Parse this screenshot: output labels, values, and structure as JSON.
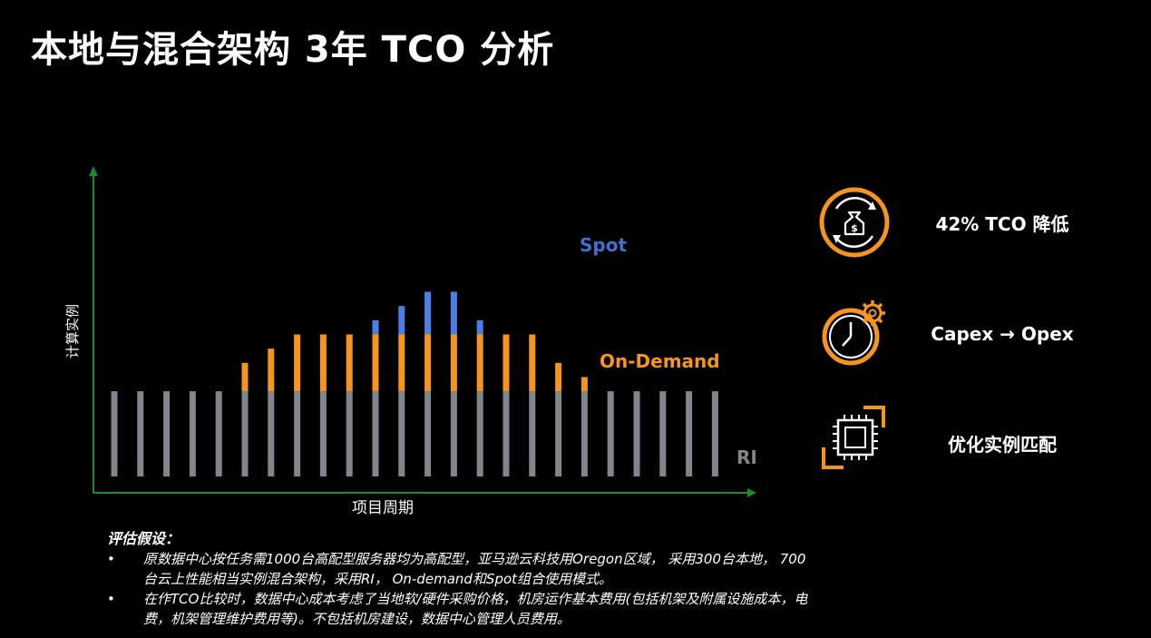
{
  "page": {
    "title": "本地与混合架构 3年 TCO 分析"
  },
  "colors": {
    "ri": "#7f868c",
    "on_demand": "#f7941d",
    "spot": "#4a7ee8",
    "axis": "#1a8c2a",
    "spot_label": "#3f72cf",
    "on_demand_label": "#f7941d",
    "ri_label": "#7f868c",
    "icon_orange": "#f7941d"
  },
  "chart_data": {
    "type": "bar",
    "stacked": true,
    "xlabel": "项目周期",
    "ylabel": "计算实例",
    "ylim": [
      0,
      1000
    ],
    "grid": false,
    "series": [
      {
        "name": "RI",
        "values": [
          300,
          300,
          300,
          300,
          300,
          300,
          300,
          300,
          300,
          300,
          300,
          300,
          300,
          300,
          300,
          300,
          300,
          300,
          300,
          300,
          300,
          300,
          300,
          300
        ]
      },
      {
        "name": "On-Demand",
        "values": [
          0,
          0,
          0,
          0,
          0,
          100,
          150,
          200,
          200,
          200,
          200,
          200,
          200,
          200,
          200,
          200,
          200,
          100,
          50,
          0,
          0,
          0,
          0,
          0
        ]
      },
      {
        "name": "Spot",
        "values": [
          0,
          0,
          0,
          0,
          0,
          0,
          0,
          0,
          0,
          0,
          50,
          100,
          150,
          150,
          50,
          0,
          0,
          0,
          0,
          0,
          0,
          0,
          0,
          0
        ]
      }
    ]
  },
  "benefits": [
    {
      "icon": "money-bag-cycle-icon",
      "label": "42%  TCO 降低"
    },
    {
      "icon": "clock-gear-icon",
      "label": "Capex → Opex"
    },
    {
      "icon": "cpu-chip-icon",
      "label": "优化实例匹配"
    }
  ],
  "notes": {
    "heading": "评估假设：",
    "items": [
      "原数据中心按任务需1000台高配型服务器均为高配型，亚马逊云科技用Oregon区域， 采用300台本地， 700台云上性能相当实例混合架构，采用RI， On-demand和Spot组合使用模式。",
      "在作TCO比较时，数据中心成本考虑了当地软/硬件采购价格，机房运作基本费用(包括机架及附属设施成本，电费，机架管理维护费用等)。不包括机房建设，数据中心管理人员费用。"
    ]
  }
}
